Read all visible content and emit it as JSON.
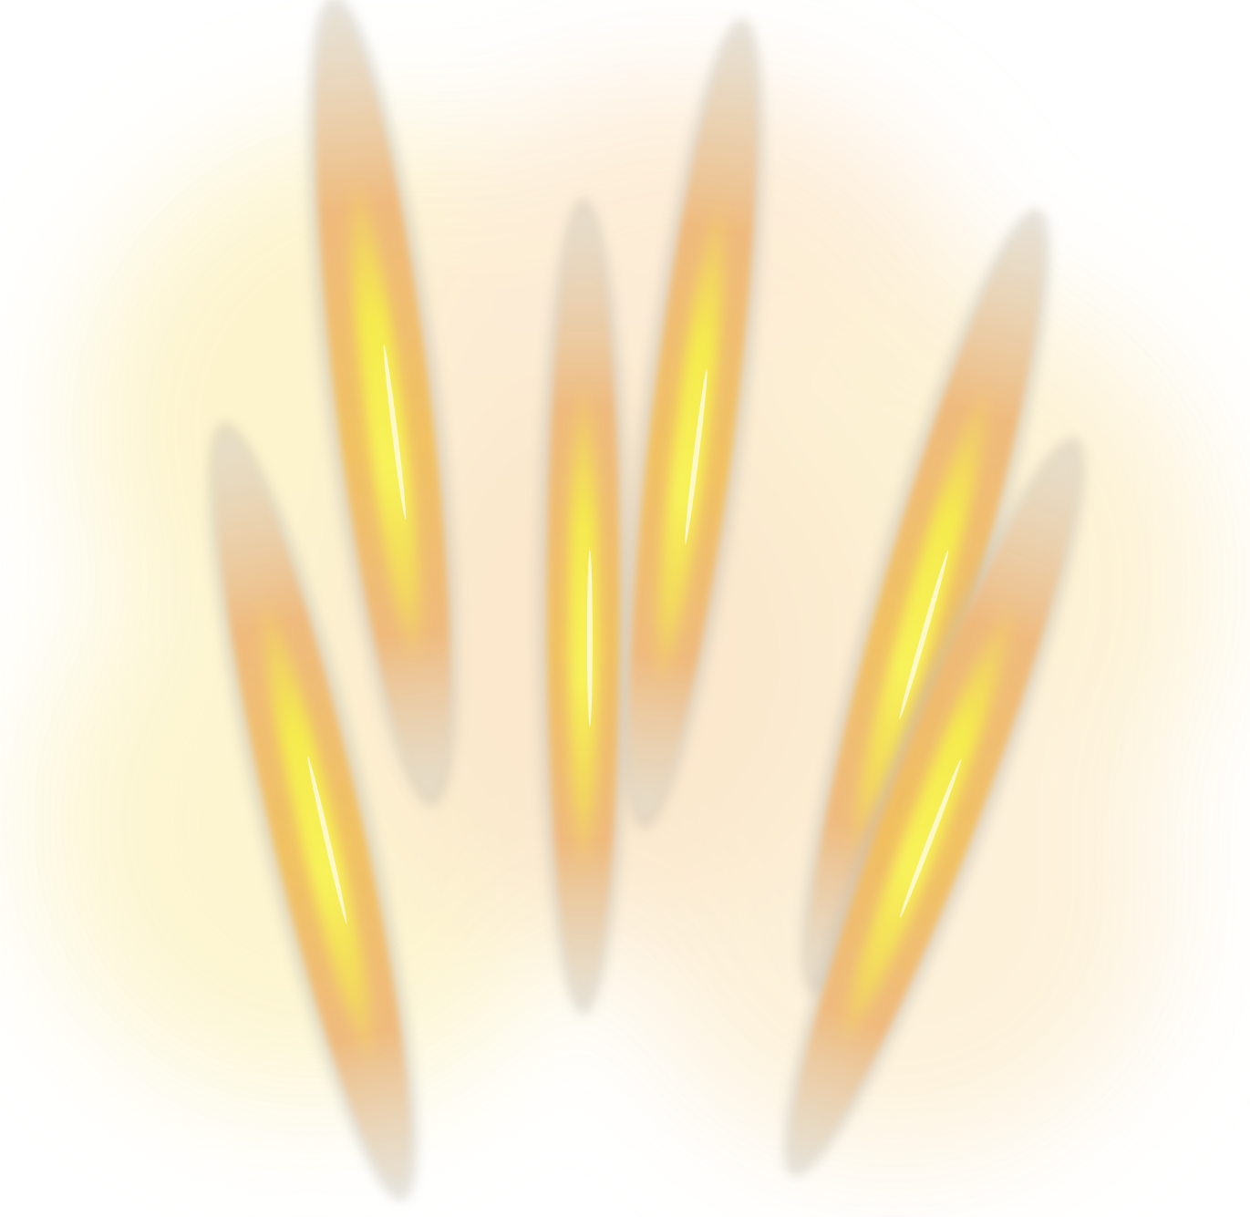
{
  "image": {
    "subject": "claw-scratch-light-effect",
    "palette": {
      "background": "#ffffff",
      "core": "#f6f04a",
      "mid": "#f3d060",
      "outer": "#f0b878",
      "halo": "#fdeecf",
      "rim": "#b8b0a0"
    },
    "streaks": [
      {
        "name": "streak-left-top"
      },
      {
        "name": "streak-left-bottom"
      },
      {
        "name": "streak-center"
      },
      {
        "name": "streak-center-right"
      },
      {
        "name": "streak-right-upper"
      },
      {
        "name": "streak-right-lower"
      }
    ]
  }
}
